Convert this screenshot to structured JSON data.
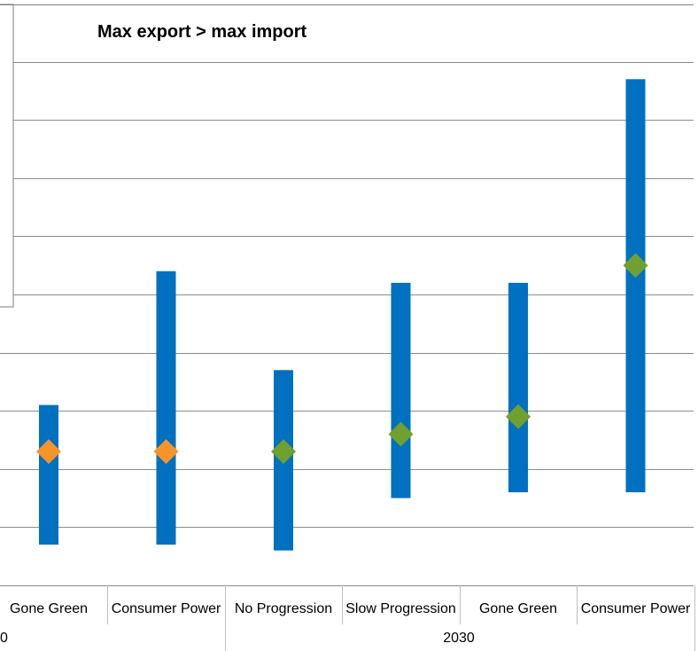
{
  "chart_data": {
    "type": "range-bar",
    "title": "Max export > max import",
    "groups": [
      {
        "label": "0",
        "categories": [
          "Gone Green",
          "Consumer Power"
        ]
      },
      {
        "label": "2030",
        "categories": [
          "No Progression",
          "Slow Progression",
          "Gone Green",
          "Consumer Power"
        ]
      }
    ],
    "categories": [
      "Gone Green",
      "Consumer Power",
      "No Progression",
      "Slow Progression",
      "Gone Green",
      "Consumer Power"
    ],
    "series": [
      {
        "kind": "range",
        "color": "#0070C0",
        "low": [
          0.7,
          0.7,
          0.6,
          1.5,
          1.6,
          1.6
        ],
        "high": [
          3.1,
          5.4,
          3.7,
          5.2,
          5.2,
          8.7
        ]
      },
      {
        "kind": "marker",
        "values": [
          2.3,
          2.3,
          2.3,
          2.6,
          2.9,
          5.5
        ],
        "colors": [
          "#F79428",
          "#F79428",
          "#70A030",
          "#70A030",
          "#70A030",
          "#70A030"
        ]
      }
    ],
    "ylim": [
      0,
      10
    ],
    "grid": true
  }
}
